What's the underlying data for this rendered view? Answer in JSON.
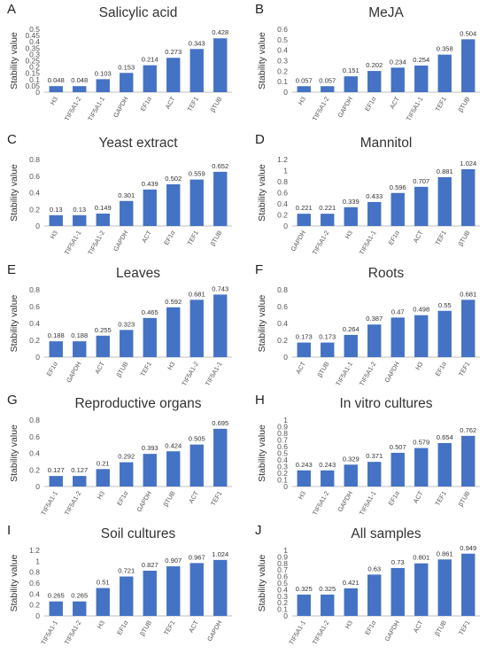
{
  "colors": {
    "bar": "#4472c4",
    "axis": "#bfbfbf",
    "text": "#333333"
  },
  "chart_data": [
    {
      "letter": "A",
      "type": "bar",
      "title": "Salicylic acid",
      "ylabel": "Stability value",
      "ylim": [
        0,
        0.5
      ],
      "yticks": [
        "0",
        "0.05",
        "0.1",
        "0.15",
        "0.2",
        "0.25",
        "0.3",
        "0.35",
        "0.4",
        "0.45",
        "0.5"
      ],
      "categories": [
        "H3",
        "TIF5A1-2",
        "TIF5A1-1",
        "GAPDH",
        "EF1α",
        "ACT",
        "TEF1",
        "βTUB"
      ],
      "values": [
        0.048,
        0.048,
        0.103,
        0.153,
        0.214,
        0.273,
        0.343,
        0.428
      ],
      "labels": [
        "0.048",
        "0.048",
        "0.103",
        "0.153",
        "0.214",
        "0.273",
        "0.343",
        "0.428"
      ]
    },
    {
      "letter": "B",
      "type": "bar",
      "title": "MeJA",
      "ylabel": "Stability value",
      "ylim": [
        0,
        0.6
      ],
      "yticks": [
        "0",
        "0.1",
        "0.2",
        "0.3",
        "0.4",
        "0.5",
        "0.6"
      ],
      "categories": [
        "H3",
        "TIF5A1-2",
        "GAPDH",
        "EF1α",
        "ACT",
        "TIF5A1-1",
        "TEF1",
        "βTUB"
      ],
      "values": [
        0.057,
        0.057,
        0.151,
        0.202,
        0.234,
        0.254,
        0.358,
        0.504
      ],
      "labels": [
        "0.057",
        "0.057",
        "0.151",
        "0.202",
        "0.234",
        "0.254",
        "0.358",
        "0.504"
      ]
    },
    {
      "letter": "C",
      "type": "bar",
      "title": "Yeast extract",
      "ylabel": "Stability value",
      "ylim": [
        0,
        0.8
      ],
      "yticks": [
        "0",
        "0.2",
        "0.4",
        "0.6",
        "0.8"
      ],
      "categories": [
        "H3",
        "TIF5A1-1",
        "TIF5A1-2",
        "GAPDH",
        "ACT",
        "EF1α",
        "TEF1",
        "βTUB"
      ],
      "values": [
        0.13,
        0.13,
        0.149,
        0.301,
        0.439,
        0.502,
        0.559,
        0.652
      ],
      "labels": [
        "0.13",
        "0.13",
        "0.149",
        "0.301",
        "0.439",
        "0.502",
        "0.559",
        "0.652"
      ]
    },
    {
      "letter": "D",
      "type": "bar",
      "title": "Mannitol",
      "ylabel": "Stability value",
      "ylim": [
        0,
        1.2
      ],
      "yticks": [
        "0",
        "0.2",
        "0.4",
        "0.6",
        "0.8",
        "1",
        "1.2"
      ],
      "categories": [
        "GAPDH",
        "TIF5A1-2",
        "H3",
        "TIF5A1-1",
        "EF1α",
        "ACT",
        "TEF1",
        "βTUB"
      ],
      "values": [
        0.221,
        0.221,
        0.339,
        0.433,
        0.596,
        0.707,
        0.881,
        1.024
      ],
      "labels": [
        "0.221",
        "0.221",
        "0.339",
        "0.433",
        "0.596",
        "0.707",
        "0.881",
        "1.024"
      ]
    },
    {
      "letter": "E",
      "type": "bar",
      "title": "Leaves",
      "ylabel": "Stability value",
      "ylim": [
        0,
        0.8
      ],
      "yticks": [
        "0",
        "0.2",
        "0.4",
        "0.6",
        "0.8"
      ],
      "categories": [
        "EF1α",
        "GAPDH",
        "ACT",
        "βTUB",
        "TEF1",
        "H3",
        "TIF5A1-2",
        "TIF5A1-1"
      ],
      "values": [
        0.188,
        0.188,
        0.255,
        0.323,
        0.465,
        0.592,
        0.681,
        0.743
      ],
      "labels": [
        "0.188",
        "0.188",
        "0.255",
        "0.323",
        "0.465",
        "0.592",
        "0.681",
        "0.743"
      ]
    },
    {
      "letter": "F",
      "type": "bar",
      "title": "Roots",
      "ylabel": "Stability value",
      "ylim": [
        0,
        0.8
      ],
      "yticks": [
        "0",
        "0.2",
        "0.4",
        "0.6",
        "0.8"
      ],
      "categories": [
        "ACT",
        "βTUB",
        "TIF5A1-1",
        "TIF5A1-2",
        "GAPDH",
        "H3",
        "EF1α",
        "TEF1"
      ],
      "values": [
        0.173,
        0.173,
        0.264,
        0.387,
        0.47,
        0.498,
        0.55,
        0.681
      ],
      "labels": [
        "0.173",
        "0.173",
        "0.264",
        "0.387",
        "0.47",
        "0.498",
        "0.55",
        "0.681"
      ]
    },
    {
      "letter": "G",
      "type": "bar",
      "title": "Reproductive organs",
      "ylabel": "Stability value",
      "ylim": [
        0,
        0.8
      ],
      "yticks": [
        "0",
        "0.2",
        "0.4",
        "0.6",
        "0.8"
      ],
      "categories": [
        "TIF5A1-1",
        "TIF5A1-2",
        "H3",
        "EF1α",
        "GAPDH",
        "βTUB",
        "ACT",
        "TEF1"
      ],
      "values": [
        0.127,
        0.127,
        0.21,
        0.292,
        0.393,
        0.424,
        0.505,
        0.695
      ],
      "labels": [
        "0.127",
        "0.127",
        "0.21",
        "0.292",
        "0.393",
        "0.424",
        "0.505",
        "0.695"
      ]
    },
    {
      "letter": "H",
      "type": "bar",
      "title": "In vitro cultures",
      "ylabel": "Stability value",
      "ylim": [
        0,
        1
      ],
      "yticks": [
        "0",
        "0.1",
        "0.2",
        "0.3",
        "0.4",
        "0.5",
        "0.6",
        "0.7",
        "0.8",
        "0.9",
        "1"
      ],
      "categories": [
        "H3",
        "TIF5A1-2",
        "GAPDH",
        "TIF5A1-1",
        "EF1α",
        "ACT",
        "TEF1",
        "βTUB"
      ],
      "values": [
        0.243,
        0.243,
        0.329,
        0.371,
        0.507,
        0.579,
        0.654,
        0.762
      ],
      "labels": [
        "0.243",
        "0.243",
        "0.329",
        "0.371",
        "0.507",
        "0.579",
        "0.654",
        "0.762"
      ]
    },
    {
      "letter": "I",
      "type": "bar",
      "title": "Soil cultures",
      "ylabel": "Stability value",
      "ylim": [
        0,
        1.2
      ],
      "yticks": [
        "0",
        "0.2",
        "0.4",
        "0.6",
        "0.8",
        "1",
        "1.2"
      ],
      "categories": [
        "TIF5A1-1",
        "TIF5A1-2",
        "H3",
        "EF1α",
        "βTUB",
        "TEF1",
        "ACT",
        "GAPDH"
      ],
      "values": [
        0.265,
        0.265,
        0.51,
        0.721,
        0.827,
        0.907,
        0.967,
        1.024
      ],
      "labels": [
        "0.265",
        "0.265",
        "0.51",
        "0.721",
        "0.827",
        "0.907",
        "0.967",
        "1.024"
      ]
    },
    {
      "letter": "J",
      "type": "bar",
      "title": "All samples",
      "ylabel": "Stability value",
      "ylim": [
        0,
        1
      ],
      "yticks": [
        "0",
        "0.1",
        "0.2",
        "0.3",
        "0.4",
        "0.5",
        "0.6",
        "0.7",
        "0.8",
        "0.9",
        "1"
      ],
      "categories": [
        "TIF5A1-1",
        "TIF5A1-2",
        "H3",
        "EF1α",
        "GAPDH",
        "ACT",
        "βTUB",
        "TEF1"
      ],
      "values": [
        0.325,
        0.325,
        0.421,
        0.63,
        0.73,
        0.801,
        0.861,
        0.949
      ],
      "labels": [
        "0.325",
        "0.325",
        "0.421",
        "0.63",
        "0.73",
        "0.801",
        "0.861",
        "0.949"
      ]
    }
  ]
}
